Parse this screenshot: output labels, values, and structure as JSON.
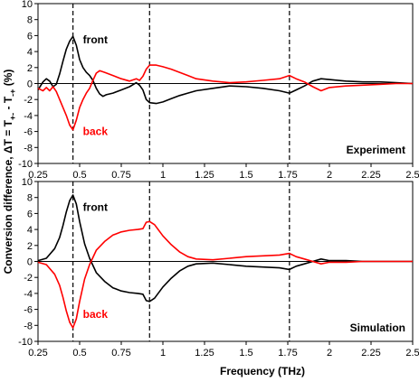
{
  "chart_data": [
    {
      "type": "line",
      "panel_label": "Experiment",
      "xlim": [
        0.25,
        2.5
      ],
      "ylim": [
        -10,
        10
      ],
      "grid": false,
      "xticks": [
        "0.25",
        "0.5",
        "0.75",
        "1",
        "1.25",
        "1.5",
        "1.75",
        "2",
        "2.25",
        "2.5"
      ],
      "yticks": [
        "10",
        "8",
        "6",
        "4",
        "2",
        "0",
        "-2",
        "-4",
        "-6",
        "-8",
        "-10"
      ],
      "vlines": [
        0.46,
        0.92,
        1.76
      ],
      "series": [
        {
          "name": "front",
          "color": "#000000",
          "points": [
            [
              0.25,
              -0.8
            ],
            [
              0.28,
              0.2
            ],
            [
              0.3,
              0.6
            ],
            [
              0.32,
              0.3
            ],
            [
              0.34,
              -0.4
            ],
            [
              0.36,
              -0.1
            ],
            [
              0.38,
              1.2
            ],
            [
              0.4,
              2.8
            ],
            [
              0.42,
              4.3
            ],
            [
              0.44,
              5.3
            ],
            [
              0.46,
              5.9
            ],
            [
              0.48,
              4.8
            ],
            [
              0.5,
              3.0
            ],
            [
              0.52,
              2.0
            ],
            [
              0.54,
              1.4
            ],
            [
              0.56,
              1.0
            ],
            [
              0.58,
              0.4
            ],
            [
              0.6,
              -0.6
            ],
            [
              0.62,
              -1.3
            ],
            [
              0.64,
              -1.6
            ],
            [
              0.66,
              -1.4
            ],
            [
              0.7,
              -1.2
            ],
            [
              0.75,
              -0.8
            ],
            [
              0.8,
              -0.4
            ],
            [
              0.84,
              0.1
            ],
            [
              0.86,
              -0.2
            ],
            [
              0.88,
              -0.8
            ],
            [
              0.9,
              -2.0
            ],
            [
              0.92,
              -2.4
            ],
            [
              0.96,
              -2.5
            ],
            [
              1.0,
              -2.3
            ],
            [
              1.05,
              -1.9
            ],
            [
              1.1,
              -1.5
            ],
            [
              1.15,
              -1.2
            ],
            [
              1.2,
              -0.9
            ],
            [
              1.3,
              -0.6
            ],
            [
              1.4,
              -0.3
            ],
            [
              1.5,
              -0.4
            ],
            [
              1.6,
              -0.6
            ],
            [
              1.7,
              -0.9
            ],
            [
              1.76,
              -1.2
            ],
            [
              1.8,
              -0.8
            ],
            [
              1.85,
              -0.3
            ],
            [
              1.9,
              0.3
            ],
            [
              1.95,
              0.6
            ],
            [
              2.0,
              0.5
            ],
            [
              2.1,
              0.3
            ],
            [
              2.2,
              0.2
            ],
            [
              2.3,
              0.2
            ],
            [
              2.4,
              0.1
            ],
            [
              2.5,
              0.0
            ]
          ]
        },
        {
          "name": "back",
          "color": "#ff0000",
          "points": [
            [
              0.25,
              -0.6
            ],
            [
              0.28,
              -0.9
            ],
            [
              0.3,
              -0.5
            ],
            [
              0.32,
              -0.9
            ],
            [
              0.34,
              -0.4
            ],
            [
              0.36,
              -1.0
            ],
            [
              0.38,
              -2.0
            ],
            [
              0.4,
              -3.0
            ],
            [
              0.42,
              -4.0
            ],
            [
              0.44,
              -5.2
            ],
            [
              0.46,
              -5.8
            ],
            [
              0.48,
              -4.6
            ],
            [
              0.5,
              -3.0
            ],
            [
              0.52,
              -2.0
            ],
            [
              0.54,
              -1.2
            ],
            [
              0.56,
              -0.6
            ],
            [
              0.58,
              0.4
            ],
            [
              0.6,
              1.3
            ],
            [
              0.62,
              1.6
            ],
            [
              0.65,
              1.4
            ],
            [
              0.7,
              1.0
            ],
            [
              0.75,
              0.6
            ],
            [
              0.8,
              0.3
            ],
            [
              0.84,
              0.6
            ],
            [
              0.86,
              0.4
            ],
            [
              0.88,
              0.9
            ],
            [
              0.9,
              1.8
            ],
            [
              0.92,
              2.3
            ],
            [
              0.96,
              2.3
            ],
            [
              1.0,
              2.1
            ],
            [
              1.05,
              1.8
            ],
            [
              1.1,
              1.4
            ],
            [
              1.15,
              1.0
            ],
            [
              1.2,
              0.6
            ],
            [
              1.3,
              0.3
            ],
            [
              1.4,
              0.1
            ],
            [
              1.5,
              0.2
            ],
            [
              1.6,
              0.4
            ],
            [
              1.7,
              0.6
            ],
            [
              1.76,
              1.0
            ],
            [
              1.8,
              0.6
            ],
            [
              1.85,
              0.2
            ],
            [
              1.9,
              -0.4
            ],
            [
              1.95,
              -0.9
            ],
            [
              2.0,
              -0.5
            ],
            [
              2.1,
              -0.3
            ],
            [
              2.2,
              -0.2
            ],
            [
              2.3,
              -0.1
            ],
            [
              2.4,
              0.0
            ],
            [
              2.5,
              0.0
            ]
          ]
        }
      ],
      "annotations": [
        {
          "text": "front",
          "color": "#000000",
          "x": 0.52,
          "y": 5.5
        },
        {
          "text": "back",
          "color": "#ff0000",
          "x": 0.52,
          "y": -6.0
        }
      ]
    },
    {
      "type": "line",
      "panel_label": "Simulation",
      "xlim": [
        0.25,
        2.5
      ],
      "ylim": [
        -10,
        10
      ],
      "grid": false,
      "xticks": [
        "0.25",
        "0.5",
        "0.75",
        "1",
        "1.25",
        "1.5",
        "1.75",
        "2",
        "2.25",
        "2.5"
      ],
      "yticks": [
        "10",
        "8",
        "6",
        "4",
        "2",
        "0",
        "-2",
        "-4",
        "-6",
        "-8",
        "-10"
      ],
      "vlines": [
        0.46,
        0.92,
        1.76
      ],
      "series": [
        {
          "name": "front",
          "color": "#000000",
          "points": [
            [
              0.25,
              0.1
            ],
            [
              0.3,
              0.4
            ],
            [
              0.35,
              1.6
            ],
            [
              0.38,
              3.0
            ],
            [
              0.4,
              4.5
            ],
            [
              0.42,
              6.2
            ],
            [
              0.44,
              7.6
            ],
            [
              0.46,
              8.3
            ],
            [
              0.48,
              7.2
            ],
            [
              0.5,
              5.0
            ],
            [
              0.53,
              2.2
            ],
            [
              0.56,
              0.4
            ],
            [
              0.6,
              -1.4
            ],
            [
              0.65,
              -2.5
            ],
            [
              0.7,
              -3.3
            ],
            [
              0.75,
              -3.7
            ],
            [
              0.8,
              -3.9
            ],
            [
              0.85,
              -4.0
            ],
            [
              0.88,
              -4.1
            ],
            [
              0.9,
              -4.9
            ],
            [
              0.92,
              -5.0
            ],
            [
              0.95,
              -4.6
            ],
            [
              1.0,
              -3.2
            ],
            [
              1.05,
              -2.1
            ],
            [
              1.1,
              -1.2
            ],
            [
              1.15,
              -0.6
            ],
            [
              1.2,
              -0.3
            ],
            [
              1.3,
              -0.2
            ],
            [
              1.4,
              -0.4
            ],
            [
              1.5,
              -0.6
            ],
            [
              1.6,
              -0.7
            ],
            [
              1.7,
              -0.8
            ],
            [
              1.76,
              -1.0
            ],
            [
              1.8,
              -0.6
            ],
            [
              1.85,
              -0.3
            ],
            [
              1.9,
              0.0
            ],
            [
              1.95,
              0.3
            ],
            [
              2.0,
              0.1
            ],
            [
              2.1,
              0.1
            ],
            [
              2.2,
              0.0
            ],
            [
              2.3,
              0.0
            ],
            [
              2.4,
              0.0
            ],
            [
              2.5,
              0.0
            ]
          ]
        },
        {
          "name": "back",
          "color": "#ff0000",
          "points": [
            [
              0.25,
              -0.1
            ],
            [
              0.3,
              -0.4
            ],
            [
              0.35,
              -1.6
            ],
            [
              0.38,
              -3.0
            ],
            [
              0.4,
              -4.5
            ],
            [
              0.42,
              -6.2
            ],
            [
              0.44,
              -7.6
            ],
            [
              0.46,
              -8.3
            ],
            [
              0.48,
              -7.2
            ],
            [
              0.5,
              -5.0
            ],
            [
              0.53,
              -2.2
            ],
            [
              0.56,
              -0.4
            ],
            [
              0.6,
              1.4
            ],
            [
              0.65,
              2.5
            ],
            [
              0.7,
              3.3
            ],
            [
              0.75,
              3.7
            ],
            [
              0.8,
              3.9
            ],
            [
              0.85,
              4.0
            ],
            [
              0.88,
              4.1
            ],
            [
              0.9,
              4.9
            ],
            [
              0.92,
              5.0
            ],
            [
              0.95,
              4.6
            ],
            [
              1.0,
              3.2
            ],
            [
              1.05,
              2.1
            ],
            [
              1.1,
              1.2
            ],
            [
              1.15,
              0.6
            ],
            [
              1.2,
              0.3
            ],
            [
              1.3,
              0.2
            ],
            [
              1.4,
              0.4
            ],
            [
              1.5,
              0.6
            ],
            [
              1.6,
              0.7
            ],
            [
              1.7,
              0.8
            ],
            [
              1.76,
              1.0
            ],
            [
              1.8,
              0.6
            ],
            [
              1.85,
              0.3
            ],
            [
              1.9,
              0.0
            ],
            [
              1.95,
              -0.3
            ],
            [
              2.0,
              -0.1
            ],
            [
              2.1,
              -0.1
            ],
            [
              2.2,
              0.0
            ],
            [
              2.3,
              0.0
            ],
            [
              2.4,
              0.0
            ],
            [
              2.5,
              0.0
            ]
          ]
        }
      ],
      "annotations": [
        {
          "text": "front",
          "color": "#000000",
          "x": 0.52,
          "y": 6.8
        },
        {
          "text": "back",
          "color": "#ff0000",
          "x": 0.52,
          "y": -6.6
        }
      ]
    }
  ],
  "xlabel": "Frequency (THz)",
  "ylabel": {
    "main": "Conversion difference,  ΔT = T",
    "sub1": "+-",
    "mid": " - T",
    "sub2": "-+",
    "end": " (%)"
  }
}
